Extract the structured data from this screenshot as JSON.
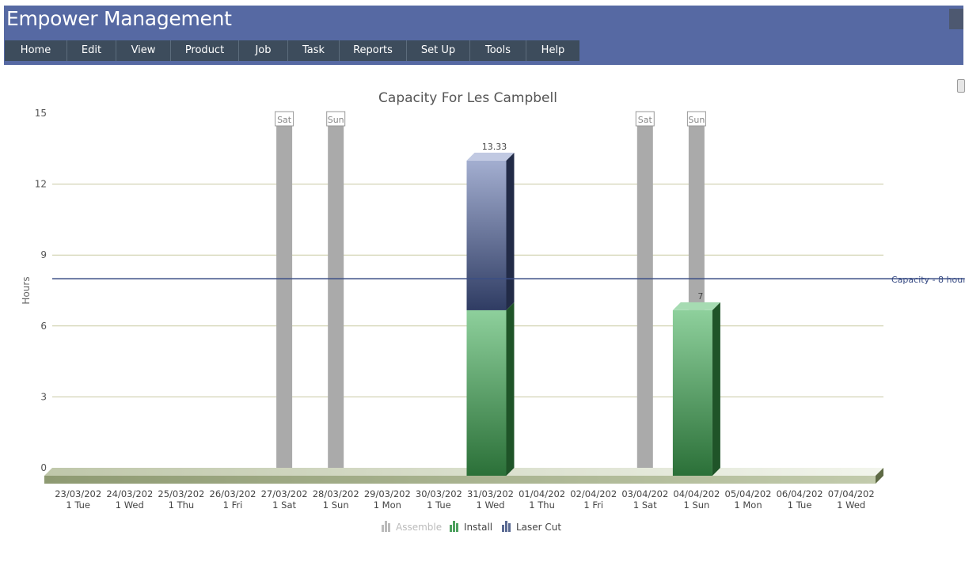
{
  "app": {
    "title": "Empower Management",
    "menu": [
      "Home",
      "Edit",
      "View",
      "Product",
      "Job",
      "Task",
      "Reports",
      "Set Up",
      "Tools",
      "Help"
    ]
  },
  "colors": {
    "header": "#5669a3",
    "menubar": "#3d4c5c",
    "install": "#4ea15f",
    "laser_cut": "#5a6a93",
    "assemble": "#bbbbbb",
    "weekend": "#aaaaaa",
    "capacity_line": "#3a4d85",
    "gridline": "#c9caa3"
  },
  "chart_data": {
    "type": "bar",
    "stacked": true,
    "three_d": true,
    "title": "Capacity For Les Campbell",
    "ylabel": "Hours",
    "xlabel": "",
    "ylim": [
      0,
      15
    ],
    "yticks": [
      0,
      3,
      6,
      9,
      12,
      15
    ],
    "grid": true,
    "legend_position": "bottom",
    "categories": [
      [
        "23/03/202",
        "1 Tue"
      ],
      [
        "24/03/202",
        "1 Wed"
      ],
      [
        "25/03/202",
        "1 Thu"
      ],
      [
        "26/03/202",
        "1 Fri"
      ],
      [
        "27/03/202",
        "1 Sat"
      ],
      [
        "28/03/202",
        "1 Sun"
      ],
      [
        "29/03/202",
        "1 Mon"
      ],
      [
        "30/03/202",
        "1 Tue"
      ],
      [
        "31/03/202",
        "1 Wed"
      ],
      [
        "01/04/202",
        "1 Thu"
      ],
      [
        "02/04/202",
        "1 Fri"
      ],
      [
        "03/04/202",
        "1 Sat"
      ],
      [
        "04/04/202",
        "1 Sun"
      ],
      [
        "05/04/202",
        "1 Mon"
      ],
      [
        "06/04/202",
        "1 Tue"
      ],
      [
        "07/04/202",
        "1 Wed"
      ]
    ],
    "series": [
      {
        "name": "Assemble",
        "values": [
          0,
          0,
          0,
          0,
          0,
          0,
          0,
          0,
          0,
          0,
          0,
          0,
          0,
          0,
          0,
          0
        ],
        "hidden": true
      },
      {
        "name": "Install",
        "values": [
          0,
          0,
          0,
          0,
          0,
          0,
          0,
          0,
          7,
          0,
          0,
          0,
          7,
          0,
          0,
          0
        ]
      },
      {
        "name": "Laser Cut",
        "values": [
          0,
          0,
          0,
          0,
          0,
          0,
          0,
          0,
          6.33,
          0,
          0,
          0,
          0,
          0,
          0,
          0
        ]
      }
    ],
    "totals_labels": [
      {
        "index": 8,
        "text": "13.33"
      },
      {
        "index": 12,
        "text": "7"
      }
    ],
    "weekend_bands": [
      {
        "index": 4,
        "label": "Sat"
      },
      {
        "index": 5,
        "label": "Sun"
      },
      {
        "index": 11,
        "label": "Sat"
      },
      {
        "index": 12,
        "label": "Sun"
      }
    ],
    "capacity_line": {
      "value": 8,
      "label": "Capacity - 8 hour"
    }
  }
}
